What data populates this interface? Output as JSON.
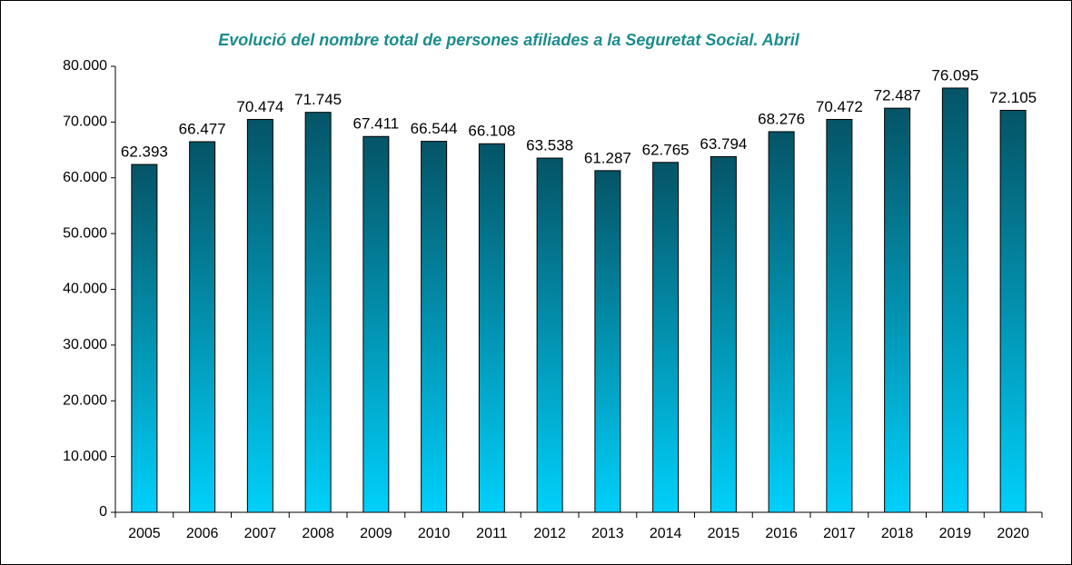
{
  "chart_data": {
    "type": "bar",
    "title": "Evolució del nombre total de persones afiliades a la Seguretat Social. Abril",
    "categories": [
      "2005",
      "2006",
      "2007",
      "2008",
      "2009",
      "2010",
      "2011",
      "2012",
      "2013",
      "2014",
      "2015",
      "2016",
      "2017",
      "2018",
      "2019",
      "2020"
    ],
    "values": [
      62393,
      66477,
      70474,
      71745,
      67411,
      66544,
      66108,
      63538,
      61287,
      62765,
      63794,
      68276,
      70472,
      72487,
      76095,
      72105
    ],
    "value_labels": [
      "62.393",
      "66.477",
      "70.474",
      "71.745",
      "67.411",
      "66.544",
      "66.108",
      "63.538",
      "61.287",
      "62.765",
      "63.794",
      "68.276",
      "70.472",
      "72.487",
      "76.095",
      "72.105"
    ],
    "gradient": [
      "#055466",
      "#00d0fa"
    ],
    "ylim": [
      0,
      80000
    ],
    "yticks": [
      0,
      {
        "value": 10000,
        "label": "10.000"
      },
      {
        "value": 20000,
        "label": "20.000"
      },
      {
        "value": 30000,
        "label": "30.000"
      },
      {
        "value": 40000,
        "label": "40.000"
      },
      {
        "value": 50000,
        "label": "50.000"
      },
      {
        "value": 60000,
        "label": "60.000"
      },
      {
        "value": 70000,
        "label": "70.000"
      },
      {
        "value": 80000,
        "label": "80.000"
      }
    ],
    "grid": false
  }
}
